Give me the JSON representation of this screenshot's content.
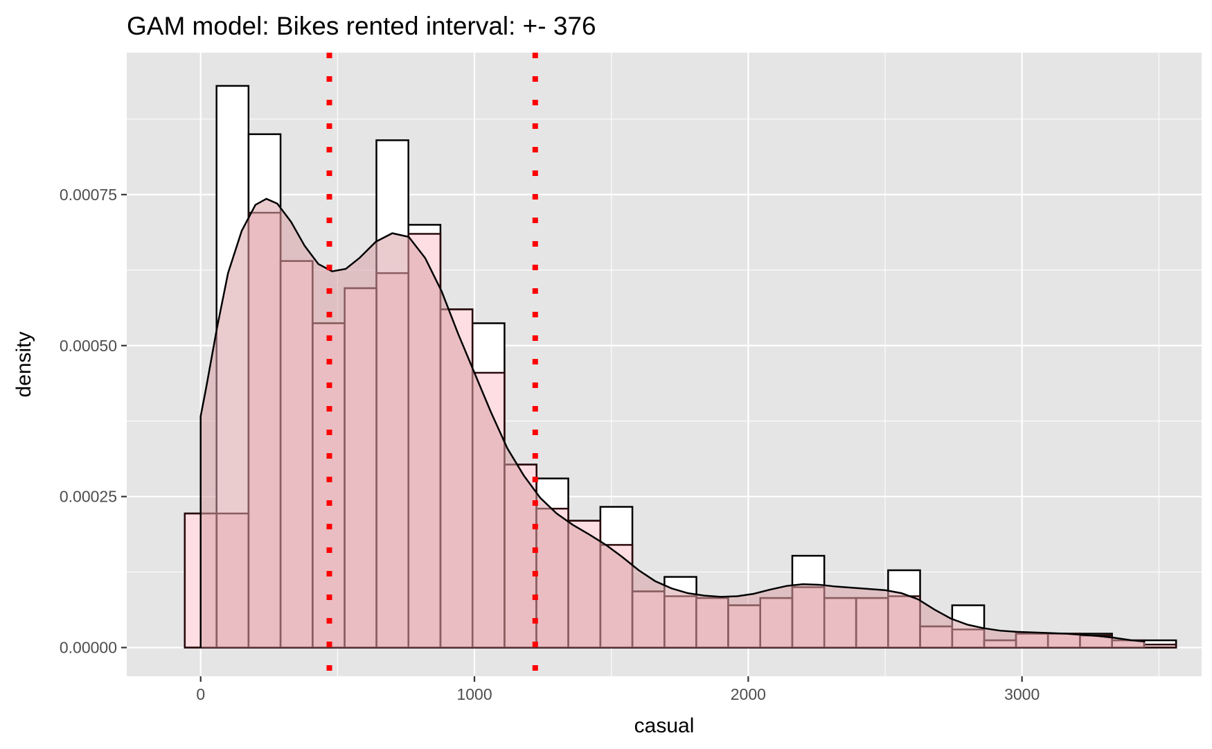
{
  "chart_data": {
    "type": "bar",
    "title": "GAM model: Bikes rented interval: +- 376",
    "xlabel": "casual",
    "ylabel": "density",
    "xlim": [
      -270,
      3656
    ],
    "ylim": [
      -4.75e-05,
      0.000985
    ],
    "x_ticks": [
      0,
      1000,
      2000,
      3000
    ],
    "x_tick_labels": [
      "0",
      "1000",
      "2000",
      "3000"
    ],
    "y_ticks": [
      0,
      0.00025,
      0.0005,
      0.00075
    ],
    "y_tick_labels": [
      "0.00000",
      "0.00025",
      "0.00050",
      "0.00075"
    ],
    "grid": true,
    "panel_background": "#E5E5E5",
    "bin_width": 116.8,
    "series": [
      {
        "bin_starts": [
          -58,
          58,
          175,
          292,
          409,
          526,
          642,
          759,
          876,
          993,
          1110,
          1226,
          1343,
          1460,
          1577,
          1694,
          1810,
          1927,
          2044,
          2161,
          2278,
          2394,
          2511,
          2628,
          2745,
          2862,
          2978,
          3095,
          3212,
          3329,
          3446
        ],
        "values": [
          0.000222,
          0.00093,
          0.00085,
          0.00064,
          0.000537,
          0.000595,
          0.00084,
          0.0007,
          0.00056,
          0.000537,
          0.000303,
          0.00028,
          0.00021,
          0.000233,
          9.3e-05,
          0.000117,
          8.2e-05,
          7e-05,
          8.2e-05,
          0.000152,
          8.2e-05,
          8.2e-05,
          0.000128,
          3.5e-05,
          7e-05,
          1.2e-05,
          2.3e-05,
          2.3e-05,
          2.3e-05,
          1.2e-05,
          1.2e-05
        ],
        "fill": "#FFFFFF",
        "stroke": "#000000"
      },
      {
        "bin_starts": [
          -58,
          58,
          175,
          292,
          409,
          526,
          642,
          759,
          876,
          993,
          1110,
          1226,
          1343,
          1460,
          1577,
          1694,
          1810,
          1927,
          2044,
          2161,
          2278,
          2394,
          2511,
          2628,
          2745,
          2862,
          2978,
          3095,
          3212,
          3329,
          3446
        ],
        "values": [
          0.000222,
          0.000222,
          0.00072,
          0.00064,
          0.000537,
          0.000595,
          0.00062,
          0.000685,
          0.00056,
          0.000455,
          0.000303,
          0.00023,
          0.00021,
          0.00017,
          9.3e-05,
          8.5e-05,
          8.2e-05,
          7e-05,
          8.2e-05,
          0.0001,
          8.2e-05,
          8.2e-05,
          8.5e-05,
          3.5e-05,
          3e-05,
          1.2e-05,
          2.3e-05,
          2.3e-05,
          2e-05,
          1.2e-05,
          5e-06
        ],
        "fill": "#FFB6C1",
        "fill_opacity": 0.45,
        "stroke": "#2a0a0a"
      }
    ],
    "density_curve": {
      "x": [
        0,
        20,
        60,
        100,
        150,
        200,
        240,
        280,
        330,
        380,
        430,
        480,
        530,
        580,
        640,
        700,
        760,
        820,
        880,
        940,
        1000,
        1060,
        1120,
        1180,
        1240,
        1300,
        1360,
        1420,
        1480,
        1540,
        1600,
        1660,
        1720,
        1780,
        1840,
        1900,
        1960,
        2020,
        2080,
        2140,
        2200,
        2260,
        2320,
        2380,
        2440,
        2500,
        2560,
        2620,
        2680,
        2740,
        2800,
        2860,
        2920,
        2980,
        3040,
        3100,
        3160,
        3220,
        3280,
        3340,
        3400,
        3450
      ],
      "y": [
        0.000383,
        0.00043,
        0.00053,
        0.00062,
        0.00069,
        0.000733,
        0.000743,
        0.000735,
        0.000705,
        0.000665,
        0.000635,
        0.000623,
        0.000627,
        0.000645,
        0.000672,
        0.000686,
        0.00068,
        0.000645,
        0.00059,
        0.00052,
        0.000455,
        0.00039,
        0.00033,
        0.000285,
        0.000248,
        0.000222,
        0.000203,
        0.000187,
        0.00017,
        0.00015,
        0.000128,
        0.00011,
        9.8e-05,
        9e-05,
        8.6e-05,
        8.4e-05,
        8.5e-05,
        8.9e-05,
        9.6e-05,
        0.000102,
        0.000105,
        0.000104,
        0.000101,
        9.9e-05,
        9.7e-05,
        9.5e-05,
        9e-05,
        8e-05,
        6.3e-05,
        4.8e-05,
        3.8e-05,
        3.2e-05,
        2.8e-05,
        2.6e-05,
        2.5e-05,
        2.4e-05,
        2.3e-05,
        2.1e-05,
        1.9e-05,
        1.6e-05,
        1.2e-05,
        1e-05
      ],
      "stroke": "#000000",
      "fill": "#D9A3A8",
      "fill_opacity": 0.55
    },
    "vlines": [
      {
        "x": 470,
        "color": "#FF0000",
        "style": "dotted"
      },
      {
        "x": 1222,
        "color": "#FF0000",
        "style": "dotted"
      }
    ]
  }
}
